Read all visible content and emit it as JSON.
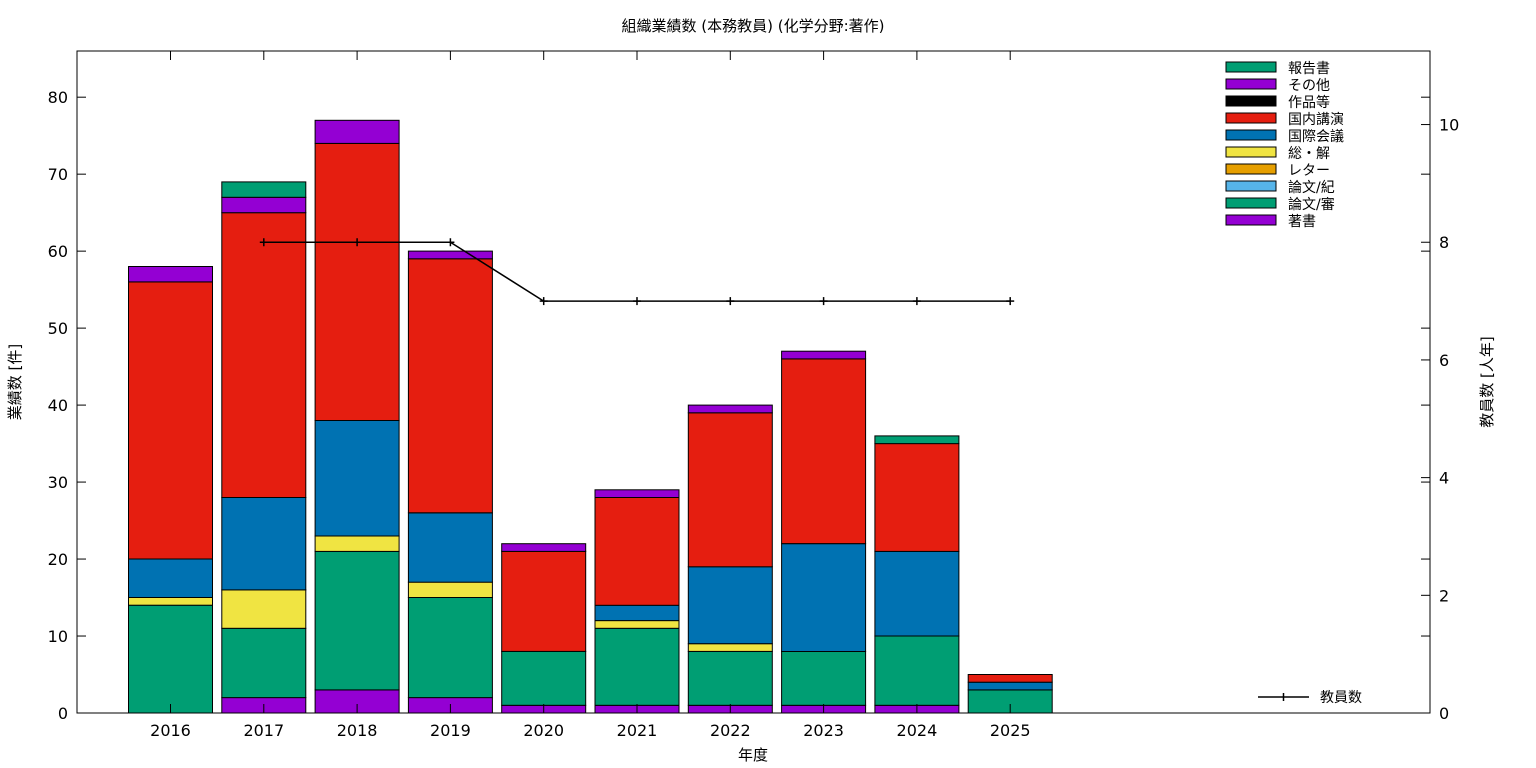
{
  "chart_data": {
    "type": "bar",
    "stacked": true,
    "title": "組織業績数 (本務教員) (化学分野:著作)",
    "xlabel": "年度",
    "ylabel": "業績数 [件]",
    "y2label": "教員数 [人年]",
    "ylim": [
      0,
      86
    ],
    "y2lim": [
      0,
      11.25
    ],
    "yticks": [
      0,
      10,
      20,
      30,
      40,
      50,
      60,
      70,
      80
    ],
    "y2ticks": [
      0,
      2,
      4,
      6,
      8,
      10
    ],
    "categories": [
      "2016",
      "2017",
      "2018",
      "2019",
      "2020",
      "2021",
      "2022",
      "2023",
      "2024",
      "2025"
    ],
    "series": [
      {
        "name": "著書",
        "color": "#9400d3",
        "values": [
          0,
          2,
          3,
          2,
          1,
          1,
          1,
          1,
          1,
          0
        ]
      },
      {
        "name": "論文/審",
        "color": "#009e73",
        "values": [
          14,
          9,
          18,
          13,
          7,
          10,
          7,
          7,
          9,
          3
        ]
      },
      {
        "name": "論文/紀",
        "color": "#56b4e9",
        "values": [
          0,
          0,
          0,
          0,
          0,
          0,
          0,
          0,
          0,
          0
        ]
      },
      {
        "name": "レター",
        "color": "#e69f00",
        "values": [
          0,
          0,
          0,
          0,
          0,
          0,
          0,
          0,
          0,
          0
        ]
      },
      {
        "name": "総・解",
        "color": "#f0e442",
        "values": [
          1,
          5,
          2,
          2,
          0,
          1,
          1,
          0,
          0,
          0
        ]
      },
      {
        "name": "国際会議",
        "color": "#0072b2",
        "values": [
          5,
          12,
          15,
          9,
          0,
          2,
          10,
          14,
          11,
          1
        ]
      },
      {
        "name": "国内講演",
        "color": "#e51e10",
        "values": [
          36,
          37,
          36,
          33,
          13,
          14,
          20,
          24,
          14,
          1
        ]
      },
      {
        "name": "作品等",
        "color": "#000000",
        "values": [
          0,
          0,
          0,
          0,
          0,
          0,
          0,
          0,
          0,
          0
        ]
      },
      {
        "name": "その他",
        "color": "#9400d3",
        "values": [
          2,
          2,
          3,
          1,
          1,
          1,
          1,
          1,
          0,
          0
        ]
      },
      {
        "name": "報告書",
        "color": "#009e73",
        "values": [
          0,
          2,
          0,
          0,
          0,
          0,
          0,
          0,
          1,
          0
        ]
      }
    ],
    "legend_order": [
      "報告書",
      "その他",
      "作品等",
      "国内講演",
      "国際会議",
      "総・解",
      "レター",
      "論文/紀",
      "論文/審",
      "著書"
    ],
    "legend_position": "top-right",
    "line_series": {
      "name": "教員数",
      "axis": "y2",
      "color": "#000000",
      "categories": [
        "2017",
        "2018",
        "2019",
        "2020",
        "2021",
        "2022",
        "2023",
        "2024",
        "2025"
      ],
      "values": [
        8,
        8,
        8,
        7,
        7,
        7,
        7,
        7,
        7
      ],
      "legend_position": "bottom-right"
    },
    "grid": false
  }
}
